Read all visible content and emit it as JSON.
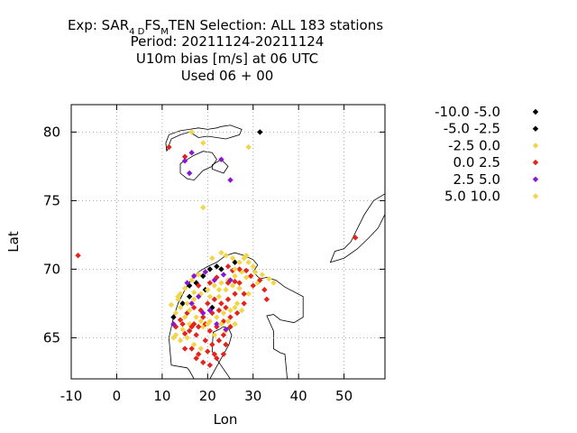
{
  "chart_data": {
    "type": "scatter",
    "title_parts": {
      "prefix": "Exp: SAR",
      "sub1": "4 D",
      "mid": "FS",
      "sub2": "M",
      "suffix": "TEN   Selection: ALL    183 stations"
    },
    "title_line2": "Period: 20211124-20211124",
    "title_line3": "U10m bias [m/s] at  06 UTC",
    "title_line4": "Used  06 + 00",
    "xlabel": "Lon",
    "ylabel": "Lat",
    "xlim": [
      -10,
      59
    ],
    "ylim": [
      62,
      82
    ],
    "x_ticks": [
      -10,
      0,
      10,
      20,
      30,
      40,
      50
    ],
    "y_ticks": [
      65,
      70,
      75,
      80
    ],
    "grid": true,
    "legend_position": "right",
    "series": [
      {
        "name": "-10.0 -5.0",
        "color": "#000000",
        "points": []
      },
      {
        "name": "-5.0 -2.5",
        "color": "#000000",
        "points": [
          [
            31.5,
            80.0
          ],
          [
            12.5,
            66.5
          ],
          [
            14.5,
            67.5
          ],
          [
            16.0,
            68.0
          ],
          [
            19.0,
            69.5
          ],
          [
            20.5,
            70.0
          ],
          [
            22.0,
            70.2
          ],
          [
            23.0,
            70.0
          ],
          [
            19.5,
            68.5
          ],
          [
            21.0,
            67.2
          ],
          [
            16.0,
            68.8
          ],
          [
            26.0,
            70.5
          ],
          [
            17.5,
            69.0
          ]
        ]
      },
      {
        "name": "-2.5 0.0",
        "color": "#f3d548",
        "points": [
          [
            16.5,
            80.0
          ],
          [
            29.0,
            78.9
          ],
          [
            19.0,
            74.5
          ],
          [
            24.0,
            71.0
          ],
          [
            25.5,
            70.8
          ],
          [
            27.0,
            70.5
          ],
          [
            28.5,
            71.0
          ],
          [
            30.0,
            70.2
          ],
          [
            27.5,
            69.8
          ],
          [
            26.0,
            69.5
          ],
          [
            24.5,
            69.2
          ],
          [
            23.0,
            69.0
          ],
          [
            21.5,
            68.8
          ],
          [
            20.0,
            68.5
          ],
          [
            18.5,
            68.2
          ],
          [
            17.0,
            67.8
          ],
          [
            15.5,
            67.5
          ],
          [
            14.0,
            67.2
          ],
          [
            13.0,
            66.8
          ],
          [
            12.0,
            67.4
          ],
          [
            13.5,
            68.0
          ],
          [
            15.0,
            68.6
          ],
          [
            16.5,
            69.2
          ],
          [
            18.0,
            69.6
          ],
          [
            22.5,
            68.0
          ],
          [
            24.0,
            68.5
          ],
          [
            25.5,
            68.8
          ],
          [
            27.0,
            68.6
          ],
          [
            28.5,
            69.4
          ],
          [
            26.5,
            67.5
          ],
          [
            25.0,
            67.0
          ],
          [
            23.5,
            66.8
          ],
          [
            22.0,
            66.5
          ],
          [
            20.5,
            66.2
          ],
          [
            19.0,
            65.8
          ],
          [
            17.5,
            66.5
          ],
          [
            16.0,
            66.0
          ],
          [
            14.5,
            65.6
          ],
          [
            13.0,
            65.2
          ],
          [
            14.0,
            64.8
          ],
          [
            15.5,
            65.0
          ],
          [
            17.0,
            64.5
          ],
          [
            18.5,
            64.2
          ],
          [
            26.0,
            66.0
          ],
          [
            27.5,
            67.0
          ],
          [
            29.0,
            68.2
          ],
          [
            31.0,
            69.0
          ],
          [
            24.0,
            65.5
          ]
        ]
      },
      {
        "name": "0.0 2.5",
        "color": "#e5231b",
        "points": [
          [
            -8.5,
            71.0
          ],
          [
            11.5,
            78.9
          ],
          [
            15.0,
            78.2
          ],
          [
            52.5,
            72.3
          ],
          [
            24.5,
            70.2
          ],
          [
            27.0,
            70.0
          ],
          [
            29.5,
            69.5
          ],
          [
            31.5,
            69.2
          ],
          [
            32.5,
            68.5
          ],
          [
            33.0,
            67.8
          ],
          [
            30.0,
            68.8
          ],
          [
            28.0,
            68.2
          ],
          [
            26.0,
            68.2
          ],
          [
            24.5,
            67.8
          ],
          [
            23.0,
            67.5
          ],
          [
            21.5,
            67.8
          ],
          [
            20.0,
            67.5
          ],
          [
            18.5,
            67.0
          ],
          [
            17.0,
            67.2
          ],
          [
            15.5,
            66.8
          ],
          [
            14.0,
            66.3
          ],
          [
            13.0,
            65.8
          ],
          [
            14.5,
            66.0
          ],
          [
            16.0,
            65.5
          ],
          [
            17.5,
            65.2
          ],
          [
            19.0,
            66.5
          ],
          [
            20.5,
            65.5
          ],
          [
            22.0,
            65.8
          ],
          [
            23.5,
            66.2
          ],
          [
            25.0,
            66.5
          ],
          [
            26.5,
            66.8
          ],
          [
            28.0,
            67.5
          ],
          [
            27.0,
            69.0
          ],
          [
            25.5,
            69.9
          ],
          [
            22.0,
            69.4
          ],
          [
            20.5,
            69.0
          ],
          [
            18.0,
            68.8
          ],
          [
            19.5,
            64.8
          ],
          [
            21.0,
            64.5
          ],
          [
            22.5,
            64.8
          ],
          [
            24.0,
            64.5
          ],
          [
            20.0,
            64.0
          ],
          [
            21.5,
            63.8
          ],
          [
            18.0,
            63.8
          ],
          [
            16.5,
            64.2
          ],
          [
            15.0,
            64.2
          ],
          [
            19.0,
            63.2
          ],
          [
            20.5,
            63.0
          ],
          [
            22.0,
            63.5
          ],
          [
            23.5,
            63.8
          ],
          [
            17.5,
            63.5
          ],
          [
            21.0,
            66.8
          ],
          [
            22.5,
            67.0
          ],
          [
            24.0,
            67.2
          ],
          [
            19.5,
            66.0
          ],
          [
            23.5,
            65.2
          ],
          [
            25.0,
            65.8
          ],
          [
            18.0,
            65.8
          ],
          [
            16.5,
            65.8
          ],
          [
            15.0,
            65.3
          ],
          [
            17.0,
            66.0
          ],
          [
            24.5,
            69.0
          ],
          [
            26.0,
            69.1
          ],
          [
            28.5,
            69.9
          ]
        ]
      },
      {
        "name": "2.5 5.0",
        "color": "#8a16d6",
        "points": [
          [
            16.5,
            78.5
          ],
          [
            15.0,
            77.9
          ],
          [
            16.0,
            77.0
          ],
          [
            23.0,
            78.0
          ],
          [
            25.0,
            76.5
          ],
          [
            12.5,
            66.0
          ],
          [
            15.5,
            69.0
          ],
          [
            17.0,
            69.5
          ],
          [
            19.5,
            69.8
          ],
          [
            21.5,
            69.2
          ],
          [
            23.5,
            69.6
          ],
          [
            25.0,
            69.2
          ],
          [
            18.0,
            68.0
          ],
          [
            20.5,
            67.0
          ],
          [
            22.0,
            66.0
          ],
          [
            24.0,
            65.6
          ],
          [
            19.0,
            66.8
          ],
          [
            16.5,
            67.5
          ]
        ]
      },
      {
        "name": "5.0 10.0",
        "color": "#f3d548",
        "points": [
          [
            19.0,
            79.2
          ],
          [
            21.0,
            70.8
          ],
          [
            23.0,
            71.2
          ],
          [
            28.0,
            70.8
          ],
          [
            30.5,
            69.8
          ],
          [
            32.0,
            69.6
          ],
          [
            33.5,
            69.3
          ],
          [
            34.5,
            69.0
          ],
          [
            26.0,
            70.0
          ],
          [
            29.0,
            70.5
          ],
          [
            14.0,
            68.2
          ],
          [
            15.0,
            66.5
          ],
          [
            16.0,
            67.0
          ],
          [
            17.0,
            68.3
          ],
          [
            18.5,
            66.2
          ],
          [
            20.0,
            66.0
          ],
          [
            21.5,
            65.2
          ],
          [
            23.0,
            66.0
          ],
          [
            24.5,
            66.2
          ],
          [
            26.0,
            67.2
          ],
          [
            22.5,
            68.5
          ],
          [
            20.5,
            68.0
          ],
          [
            13.5,
            67.8
          ],
          [
            12.5,
            65.0
          ]
        ]
      }
    ],
    "landmasses": [
      [
        [
          12,
          63
        ],
        [
          11.5,
          65
        ],
        [
          12.5,
          66.5
        ],
        [
          13.5,
          67.5
        ],
        [
          15,
          68.5
        ],
        [
          16.5,
          69.3
        ],
        [
          18,
          69.8
        ],
        [
          20,
          70.2
        ],
        [
          22,
          70.5
        ],
        [
          24,
          71
        ],
        [
          26,
          71.2
        ],
        [
          28,
          71
        ],
        [
          30,
          70.7
        ],
        [
          31,
          70.3
        ],
        [
          30,
          69.8
        ],
        [
          31.5,
          69.3
        ],
        [
          33,
          69.4
        ],
        [
          35,
          69.2
        ],
        [
          37,
          68.7
        ],
        [
          41,
          68
        ],
        [
          41,
          66.5
        ],
        [
          39,
          66.1
        ],
        [
          36,
          66.3
        ],
        [
          34.5,
          66.7
        ],
        [
          33,
          66.6
        ],
        [
          34.5,
          65.5
        ],
        [
          34.5,
          64.2
        ],
        [
          36,
          63.9
        ],
        [
          37,
          63.8
        ],
        [
          37.5,
          62
        ],
        [
          25,
          62
        ],
        [
          22.5,
          63.2
        ],
        [
          21,
          64
        ],
        [
          21.2,
          65.4
        ],
        [
          22.5,
          65.6
        ],
        [
          23.5,
          65.8
        ],
        [
          24.6,
          65.7
        ],
        [
          25.3,
          65.2
        ],
        [
          24.7,
          64.5
        ],
        [
          23,
          63.5
        ],
        [
          20.5,
          62
        ],
        [
          17,
          62
        ],
        [
          16,
          62.6
        ],
        [
          15.5,
          62.8
        ],
        [
          12,
          63
        ]
      ],
      [
        [
          11,
          78.6
        ],
        [
          12,
          79.5
        ],
        [
          14,
          79.8
        ],
        [
          16,
          80
        ],
        [
          17,
          79.8
        ],
        [
          18,
          79.6
        ],
        [
          20,
          79.7
        ],
        [
          22,
          79.6
        ],
        [
          24,
          79.5
        ],
        [
          27,
          79.8
        ],
        [
          27.5,
          80.2
        ],
        [
          25,
          80.5
        ],
        [
          23,
          80.4
        ],
        [
          22,
          80.3
        ],
        [
          20,
          80.2
        ],
        [
          18,
          80.3
        ],
        [
          16,
          80.2
        ],
        [
          14,
          80.1
        ],
        [
          11.5,
          79.8
        ],
        [
          10.8,
          79.2
        ],
        [
          11,
          78.6
        ]
      ],
      [
        [
          14,
          77
        ],
        [
          15.5,
          76.6
        ],
        [
          17,
          76.5
        ],
        [
          19,
          77.2
        ],
        [
          21,
          77.5
        ],
        [
          22,
          78
        ],
        [
          21,
          78.5
        ],
        [
          19,
          78.6
        ],
        [
          17,
          78.3
        ],
        [
          15.5,
          78
        ],
        [
          14,
          77.7
        ],
        [
          14,
          77
        ]
      ],
      [
        [
          21,
          77.3
        ],
        [
          23.5,
          77
        ],
        [
          24.5,
          77.5
        ],
        [
          23,
          78
        ],
        [
          21,
          77.6
        ],
        [
          21,
          77.3
        ]
      ],
      [
        [
          47,
          70.5
        ],
        [
          50,
          70.8
        ],
        [
          53,
          71.5
        ],
        [
          55.5,
          72.3
        ],
        [
          57.5,
          73
        ],
        [
          59,
          74
        ],
        [
          59,
          75.5
        ],
        [
          56.5,
          75
        ],
        [
          54.5,
          74
        ],
        [
          53,
          73
        ],
        [
          51.5,
          72
        ],
        [
          50,
          71.5
        ],
        [
          48,
          71.3
        ],
        [
          47,
          70.5
        ]
      ]
    ]
  }
}
